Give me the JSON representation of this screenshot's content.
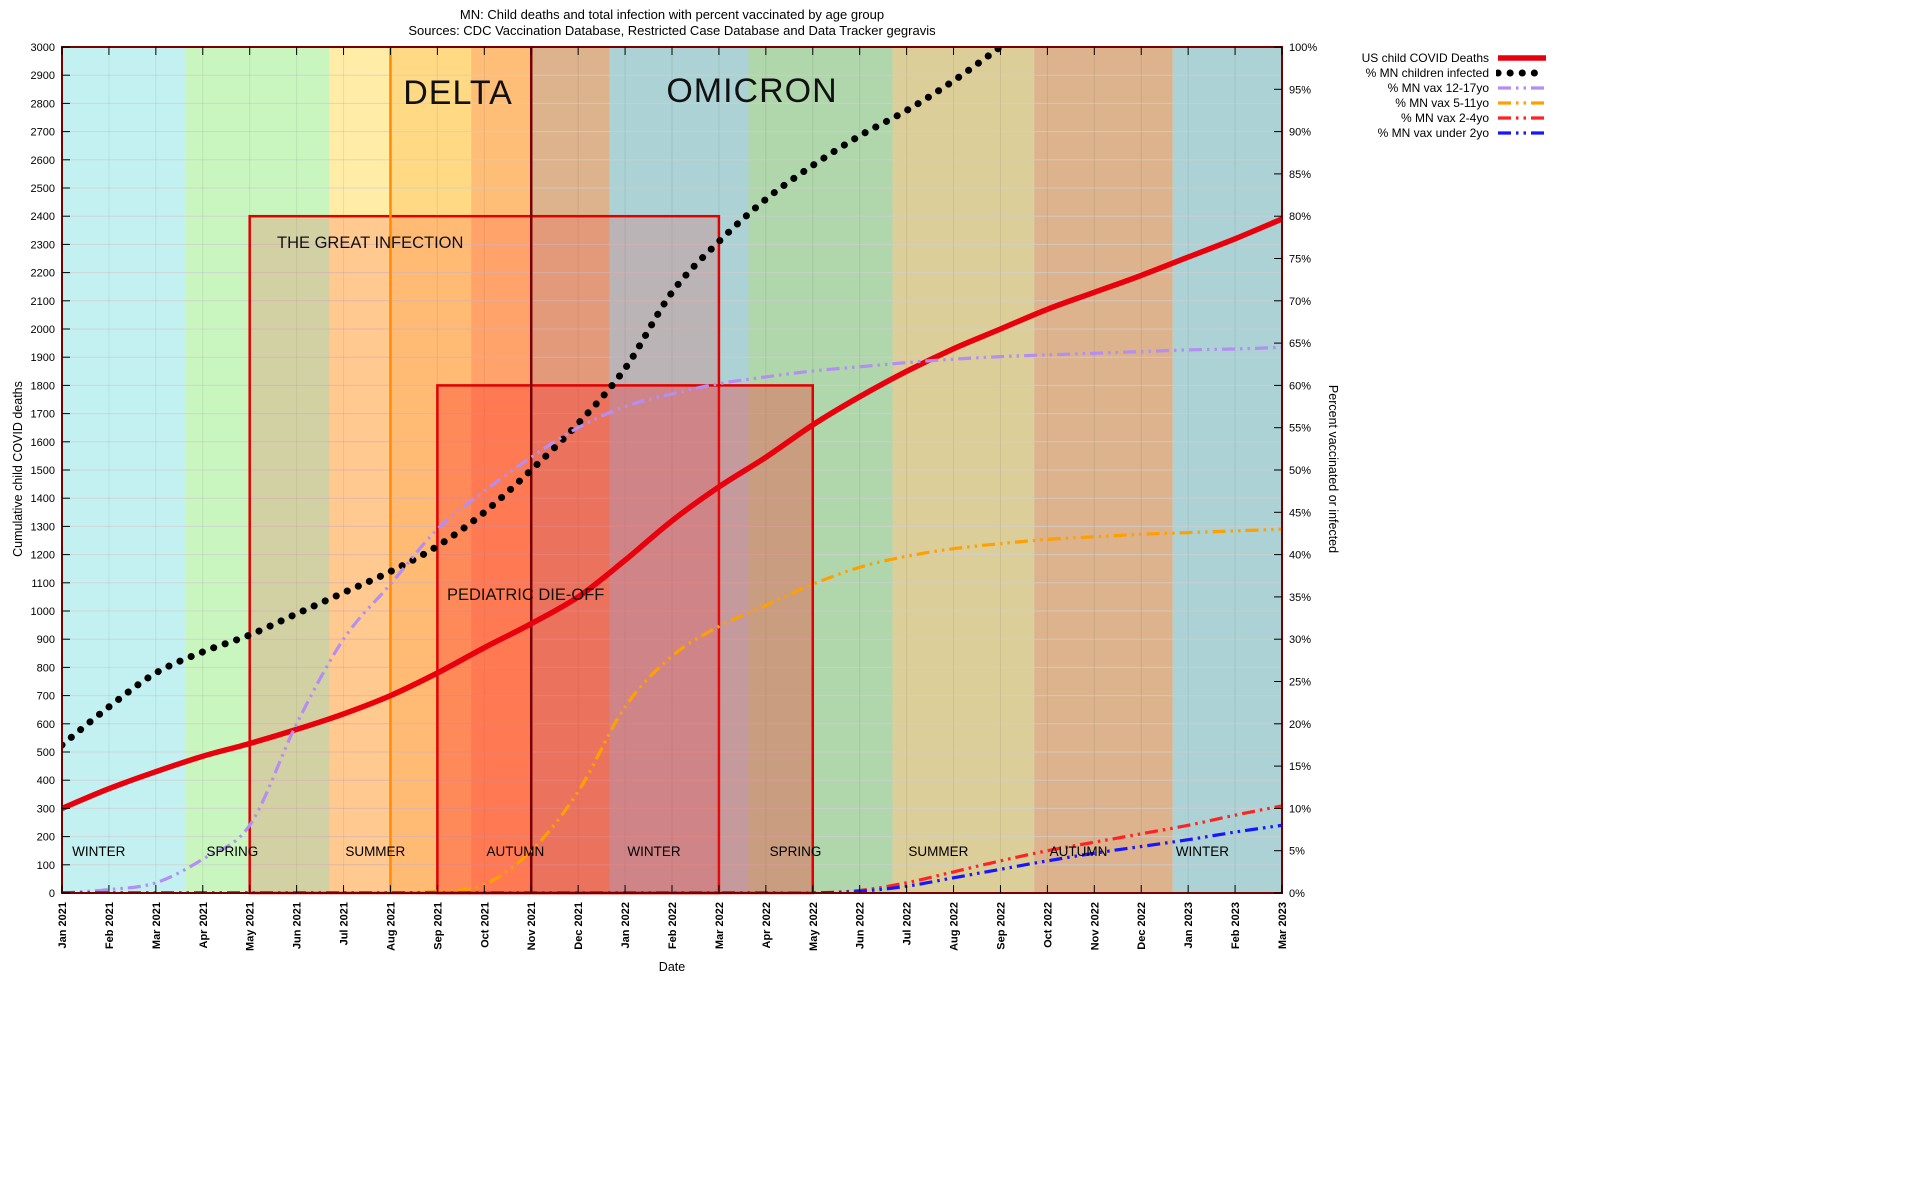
{
  "chart_data": {
    "type": "line",
    "title": "MN:  Child deaths and total infection with percent vaccinated by age group",
    "subtitle": "Sources: CDC Vaccination Database, Restricted Case Database and Data Tracker  gegravis",
    "xlabel": "Date",
    "ylabel": "Cumulative child COVID deaths",
    "y2label": "Percent vaccinated or infected",
    "ylim_left": [
      0,
      3000
    ],
    "ytick_left": 100,
    "ylim_right": [
      0,
      100
    ],
    "ytick_right": 5,
    "y2_suffix": "%",
    "grid": true,
    "legend_position": "outside-top-right",
    "x_categories": [
      "Jan 2021",
      "Feb 2021",
      "Mar 2021",
      "Apr 2021",
      "May 2021",
      "Jun 2021",
      "Jul 2021",
      "Aug 2021",
      "Sep 2021",
      "Oct 2021",
      "Nov 2021",
      "Dec 2021",
      "Jan 2022",
      "Feb 2022",
      "Mar 2022",
      "Apr 2022",
      "May 2022",
      "Jun 2022",
      "Jul 2022",
      "Aug 2022",
      "Sep 2022",
      "Oct 2022",
      "Nov 2022",
      "Dec 2022",
      "Jan 2023",
      "Feb 2023",
      "Mar 2023"
    ],
    "annotations": {
      "delta": "DELTA",
      "omicron": "OMICRON",
      "great_infection": "THE GREAT INFECTION",
      "pediatric_dieoff": "PEDIATRIC DIE-OFF"
    },
    "season_bands": [
      {
        "label": "WINTER",
        "start": 0,
        "end": 2.63,
        "color": "#c3f1f2"
      },
      {
        "label": "SPRING",
        "start": 2.63,
        "end": 5.7,
        "color": "#c9f6bf"
      },
      {
        "label": "SUMMER",
        "start": 5.7,
        "end": 8.72,
        "color": "#ffeca6"
      },
      {
        "label": "AUTUMN",
        "start": 8.72,
        "end": 11.67,
        "color": "#ffca96"
      },
      {
        "label": "WINTER",
        "start": 11.67,
        "end": 14.63,
        "color": "#c3f1f2"
      },
      {
        "label": "SPRING",
        "start": 14.63,
        "end": 17.7,
        "color": "#c9f6bf"
      },
      {
        "label": "SUMMER",
        "start": 17.7,
        "end": 20.72,
        "color": "#ffeca6"
      },
      {
        "label": "AUTUMN",
        "start": 20.72,
        "end": 23.67,
        "color": "#ffca96"
      },
      {
        "label": "WINTER",
        "start": 23.67,
        "end": 26,
        "color": "#c3f1f2"
      }
    ],
    "regions": [
      {
        "name": "DELTA",
        "start": 7,
        "end": 10,
        "fill": "rgba(255,145,0,0.20)",
        "border": "#ff8c00"
      },
      {
        "name": "OMICRON",
        "start": 10,
        "end": 26,
        "fill": "rgba(80,90,100,0.20)",
        "border": "#7a0000"
      }
    ],
    "boxes": [
      {
        "label": "THE GREAT INFECTION",
        "x_start": 4,
        "x_end": 14,
        "y_top": 2400,
        "fill": "rgba(255,45,45,0.18)",
        "border": "#e00000"
      },
      {
        "label": "PEDIATRIC DIE-OFF",
        "x_start": 8,
        "x_end": 16,
        "y_top": 1800,
        "fill": "rgba(255,25,25,0.30)",
        "border": "#e00000"
      }
    ],
    "series": [
      {
        "name": "US child COVID Deaths",
        "axis": "left",
        "color": "#e8000d",
        "style": "solid",
        "width": 5.5,
        "values": [
          300,
          370,
          430,
          485,
          530,
          580,
          635,
          700,
          780,
          870,
          955,
          1050,
          1180,
          1320,
          1440,
          1545,
          1660,
          1760,
          1850,
          1930,
          2000,
          2070,
          2130,
          2190,
          2255,
          2320,
          2390
        ]
      },
      {
        "name": "% MN children infected",
        "axis": "right",
        "color": "#000000",
        "style": "dots",
        "width": 7,
        "values": [
          17.5,
          22,
          26,
          28.5,
          30.5,
          33,
          35.5,
          38,
          41,
          45,
          50,
          55.5,
          62,
          71,
          77,
          82,
          86,
          89.5,
          92.5,
          96,
          100,
          null,
          null,
          null,
          null,
          null,
          null
        ]
      },
      {
        "name": "% MN vax 12-17yo",
        "axis": "right",
        "color": "#b48ef2",
        "style": "dashdot",
        "width": 3.2,
        "values": [
          0,
          0.4,
          1.2,
          4,
          8,
          20,
          30,
          36.5,
          43,
          47.5,
          51.5,
          55,
          57.5,
          59,
          60.2,
          61,
          61.7,
          62.2,
          62.7,
          63.1,
          63.4,
          63.6,
          63.8,
          64,
          64.2,
          64.3,
          64.5
        ]
      },
      {
        "name": "% MN vax 5-11yo",
        "axis": "right",
        "color": "#ffa000",
        "style": "dashdot",
        "width": 3.2,
        "values": [
          0,
          0,
          0,
          0,
          0,
          0,
          0,
          0,
          0.2,
          1,
          5,
          12,
          22,
          28,
          31.5,
          34,
          36.5,
          38.5,
          39.8,
          40.7,
          41.3,
          41.8,
          42.1,
          42.4,
          42.6,
          42.8,
          43
        ]
      },
      {
        "name": "% MN vax 2-4yo",
        "axis": "right",
        "color": "#ff2222",
        "style": "dashdot",
        "width": 3.2,
        "values": [
          0,
          0,
          0,
          0,
          0,
          0,
          0,
          0,
          0,
          0,
          0,
          0,
          0,
          0,
          0,
          0,
          0,
          0.3,
          1.2,
          2.5,
          3.8,
          5,
          6,
          7,
          8,
          9.2,
          10.3
        ]
      },
      {
        "name": "% MN vax under 2yo",
        "axis": "right",
        "color": "#1616ff",
        "style": "dashdot",
        "width": 3.2,
        "values": [
          0,
          0,
          0,
          0,
          0,
          0,
          0,
          0,
          0,
          0,
          0,
          0,
          0,
          0,
          0,
          0,
          0,
          0.2,
          0.8,
          1.8,
          2.8,
          3.8,
          4.7,
          5.5,
          6.3,
          7.2,
          8
        ]
      }
    ]
  }
}
